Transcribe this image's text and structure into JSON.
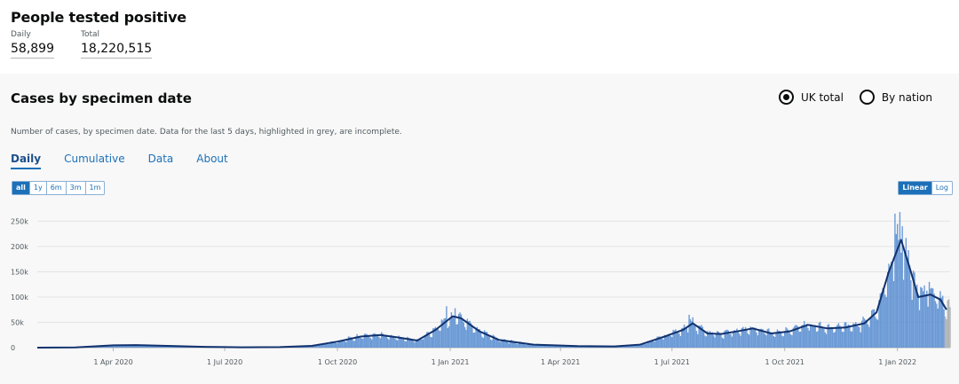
{
  "header": {
    "title": "People tested positive",
    "daily_label": "Daily",
    "daily_value": "58,899",
    "total_label": "Total",
    "total_value": "18,220,515"
  },
  "card": {
    "title": "Cases by specimen date",
    "radio_uk": "UK total",
    "radio_nation": "By nation",
    "description": "Number of cases, by specimen date. Data for the last 5 days, highlighted in grey, are incomplete.",
    "tabs": [
      "Daily",
      "Cumulative",
      "Data",
      "About"
    ],
    "ranges": [
      "all",
      "1y",
      "6m",
      "3m",
      "1m"
    ],
    "scales": [
      "Linear",
      "Log"
    ]
  },
  "colors": {
    "bar": "#5b8fd1",
    "line": "#12326e",
    "incomplete": "#b1b4b6",
    "accent": "#1d70b8"
  },
  "chart_data": {
    "type": "bar",
    "title": "",
    "xlabel": "",
    "ylabel": "",
    "ylim": [
      0,
      270000
    ],
    "y_ticks": [
      "250k",
      "200k",
      "150k",
      "100k",
      "50k",
      "0"
    ],
    "x_ticks": [
      "1 Apr 2020",
      "1 Jul 2020",
      "1 Oct 2020",
      "1 Jan 2021",
      "1 Apr 2021",
      "1 Jul 2021",
      "1 Oct 2021",
      "1 Jan 2022"
    ],
    "x_range": [
      "2020-01-30",
      "2022-02-13"
    ],
    "series": [
      {
        "kind": "rolling average",
        "points": [
          [
            "2020-01-30",
            0
          ],
          [
            "2020-03-01",
            500
          ],
          [
            "2020-04-01",
            4500
          ],
          [
            "2020-04-20",
            5000
          ],
          [
            "2020-05-15",
            3500
          ],
          [
            "2020-06-15",
            1500
          ],
          [
            "2020-07-15",
            700
          ],
          [
            "2020-08-15",
            1000
          ],
          [
            "2020-09-10",
            3500
          ],
          [
            "2020-10-01",
            12000
          ],
          [
            "2020-10-20",
            22000
          ],
          [
            "2020-11-05",
            25000
          ],
          [
            "2020-11-20",
            20000
          ],
          [
            "2020-12-05",
            14000
          ],
          [
            "2020-12-20",
            35000
          ],
          [
            "2021-01-03",
            62000
          ],
          [
            "2021-01-10",
            58000
          ],
          [
            "2021-01-25",
            32000
          ],
          [
            "2021-02-10",
            15000
          ],
          [
            "2021-03-10",
            6000
          ],
          [
            "2021-04-15",
            3000
          ],
          [
            "2021-05-15",
            2500
          ],
          [
            "2021-06-05",
            6000
          ],
          [
            "2021-06-25",
            22000
          ],
          [
            "2021-07-10",
            35000
          ],
          [
            "2021-07-18",
            48000
          ],
          [
            "2021-07-30",
            28000
          ],
          [
            "2021-08-10",
            27000
          ],
          [
            "2021-08-25",
            33000
          ],
          [
            "2021-09-05",
            38000
          ],
          [
            "2021-09-20",
            28000
          ],
          [
            "2021-10-05",
            32000
          ],
          [
            "2021-10-20",
            45000
          ],
          [
            "2021-11-05",
            38000
          ],
          [
            "2021-11-20",
            40000
          ],
          [
            "2021-12-05",
            48000
          ],
          [
            "2021-12-15",
            70000
          ],
          [
            "2021-12-25",
            150000
          ],
          [
            "2022-01-04",
            213000
          ],
          [
            "2022-01-12",
            150000
          ],
          [
            "2022-01-18",
            100000
          ],
          [
            "2022-01-28",
            105000
          ],
          [
            "2022-02-05",
            95000
          ],
          [
            "2022-02-10",
            75000
          ]
        ]
      }
    ],
    "spikes": [
      [
        "2020-12-29",
        82000
      ],
      [
        "2021-01-05",
        78000
      ],
      [
        "2021-07-15",
        65000
      ],
      [
        "2021-12-30",
        265000
      ],
      [
        "2022-01-03",
        268000
      ],
      [
        "2022-01-05",
        240000
      ],
      [
        "2022-01-20",
        120000
      ],
      [
        "2022-01-27",
        130000
      ]
    ],
    "incomplete_days": 5
  }
}
